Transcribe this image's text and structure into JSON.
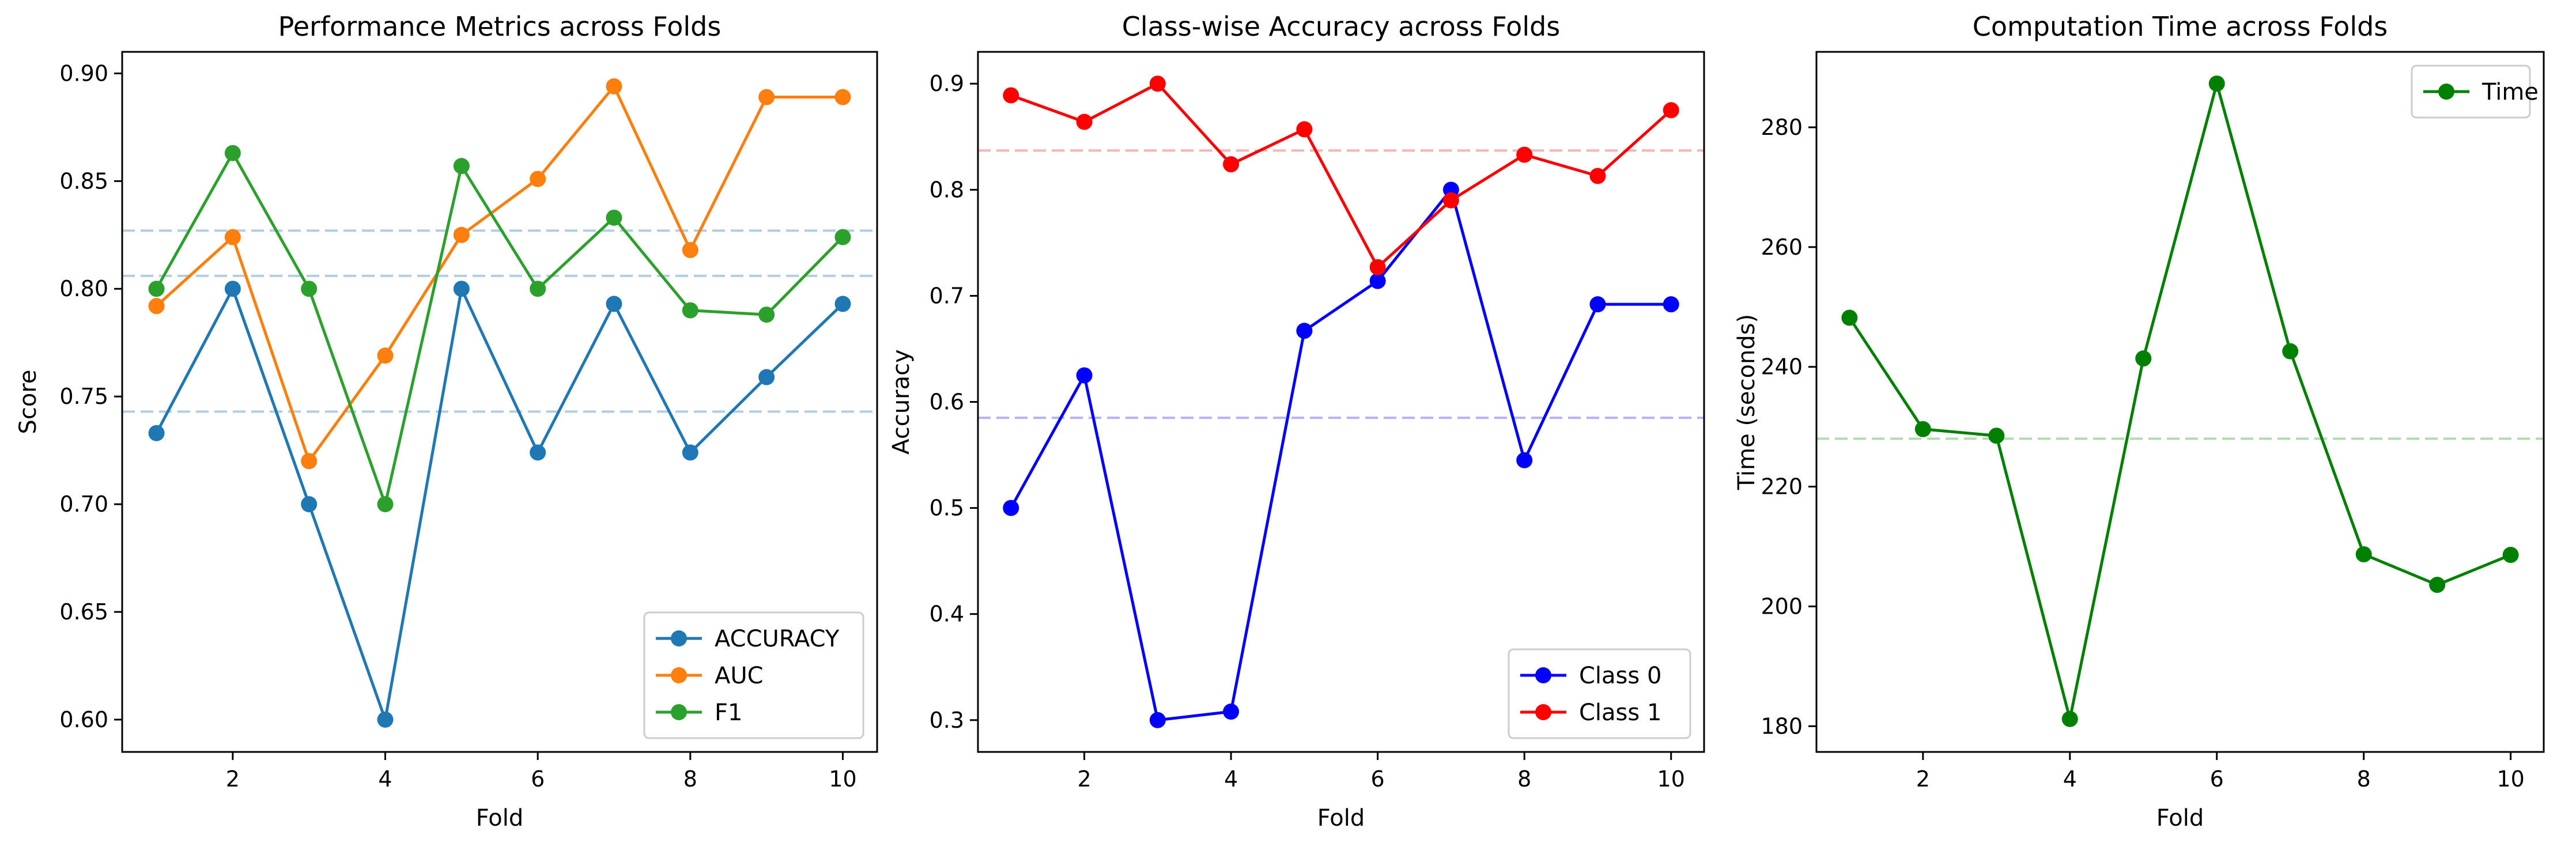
{
  "chart_data": [
    {
      "type": "line",
      "title": "Performance Metrics across Folds",
      "xlabel": "Fold",
      "ylabel": "Score",
      "xlim": [
        0.55,
        10.45
      ],
      "ylim": [
        0.585,
        0.91
      ],
      "xticks": [
        2,
        4,
        6,
        8,
        10
      ],
      "yticks": [
        0.6,
        0.65,
        0.7,
        0.75,
        0.8,
        0.85,
        0.9
      ],
      "ytick_labels": [
        "0.60",
        "0.65",
        "0.70",
        "0.75",
        "0.80",
        "0.85",
        "0.90"
      ],
      "grid": false,
      "legend": "lower-right",
      "x": [
        1,
        2,
        3,
        4,
        5,
        6,
        7,
        8,
        9,
        10
      ],
      "series": [
        {
          "name": "ACCURACY",
          "color": "#1f77b4",
          "values": [
            0.733,
            0.8,
            0.7,
            0.6,
            0.8,
            0.724,
            0.793,
            0.724,
            0.759,
            0.793
          ],
          "mean": 0.743
        },
        {
          "name": "AUC",
          "color": "#ff7f0e",
          "values": [
            0.792,
            0.824,
            0.72,
            0.769,
            0.825,
            0.851,
            0.894,
            0.818,
            0.889,
            0.889
          ],
          "mean": 0.827
        },
        {
          "name": "F1",
          "color": "#2ca02c",
          "values": [
            0.8,
            0.863,
            0.8,
            0.7,
            0.857,
            0.8,
            0.833,
            0.79,
            0.788,
            0.824
          ],
          "mean": 0.806
        }
      ],
      "mean_line_color": "#a8c8e0"
    },
    {
      "type": "line",
      "title": "Class-wise Accuracy across Folds",
      "xlabel": "Fold",
      "ylabel": "Accuracy",
      "xlim": [
        0.55,
        10.45
      ],
      "ylim": [
        0.27,
        0.93
      ],
      "xticks": [
        2,
        4,
        6,
        8,
        10
      ],
      "yticks": [
        0.3,
        0.4,
        0.5,
        0.6,
        0.7,
        0.8,
        0.9
      ],
      "ytick_labels": [
        "0.3",
        "0.4",
        "0.5",
        "0.6",
        "0.7",
        "0.8",
        "0.9"
      ],
      "grid": false,
      "legend": "lower-right",
      "x": [
        1,
        2,
        3,
        4,
        5,
        6,
        7,
        8,
        9,
        10
      ],
      "series": [
        {
          "name": "Class 0",
          "color": "#0000ff",
          "values": [
            0.5,
            0.625,
            0.3,
            0.308,
            0.667,
            0.714,
            0.8,
            0.545,
            0.692,
            0.692
          ],
          "mean": 0.585,
          "mean_color": "#aaaaff"
        },
        {
          "name": "Class 1",
          "color": "#ff0000",
          "values": [
            0.889,
            0.864,
            0.9,
            0.824,
            0.857,
            0.727,
            0.79,
            0.833,
            0.813,
            0.875
          ],
          "mean": 0.837,
          "mean_color": "#ffaaaa"
        }
      ]
    },
    {
      "type": "line",
      "title": "Computation Time across Folds",
      "xlabel": "Fold",
      "ylabel": "Time (seconds)",
      "xlim": [
        0.55,
        10.45
      ],
      "ylim": [
        175.7,
        292.6
      ],
      "xticks": [
        2,
        4,
        6,
        8,
        10
      ],
      "yticks": [
        180,
        200,
        220,
        240,
        260,
        280
      ],
      "ytick_labels": [
        "180",
        "200",
        "220",
        "240",
        "260",
        "280"
      ],
      "grid": false,
      "legend": "upper-right",
      "x": [
        1,
        2,
        3,
        4,
        5,
        6,
        7,
        8,
        9,
        10
      ],
      "series": [
        {
          "name": "Time",
          "color": "#008000",
          "values": [
            248.2,
            229.6,
            228.5,
            181.2,
            241.4,
            287.3,
            242.6,
            208.7,
            203.6,
            208.6
          ],
          "mean": 228.0,
          "mean_color": "#a8d8a8"
        }
      ]
    }
  ]
}
